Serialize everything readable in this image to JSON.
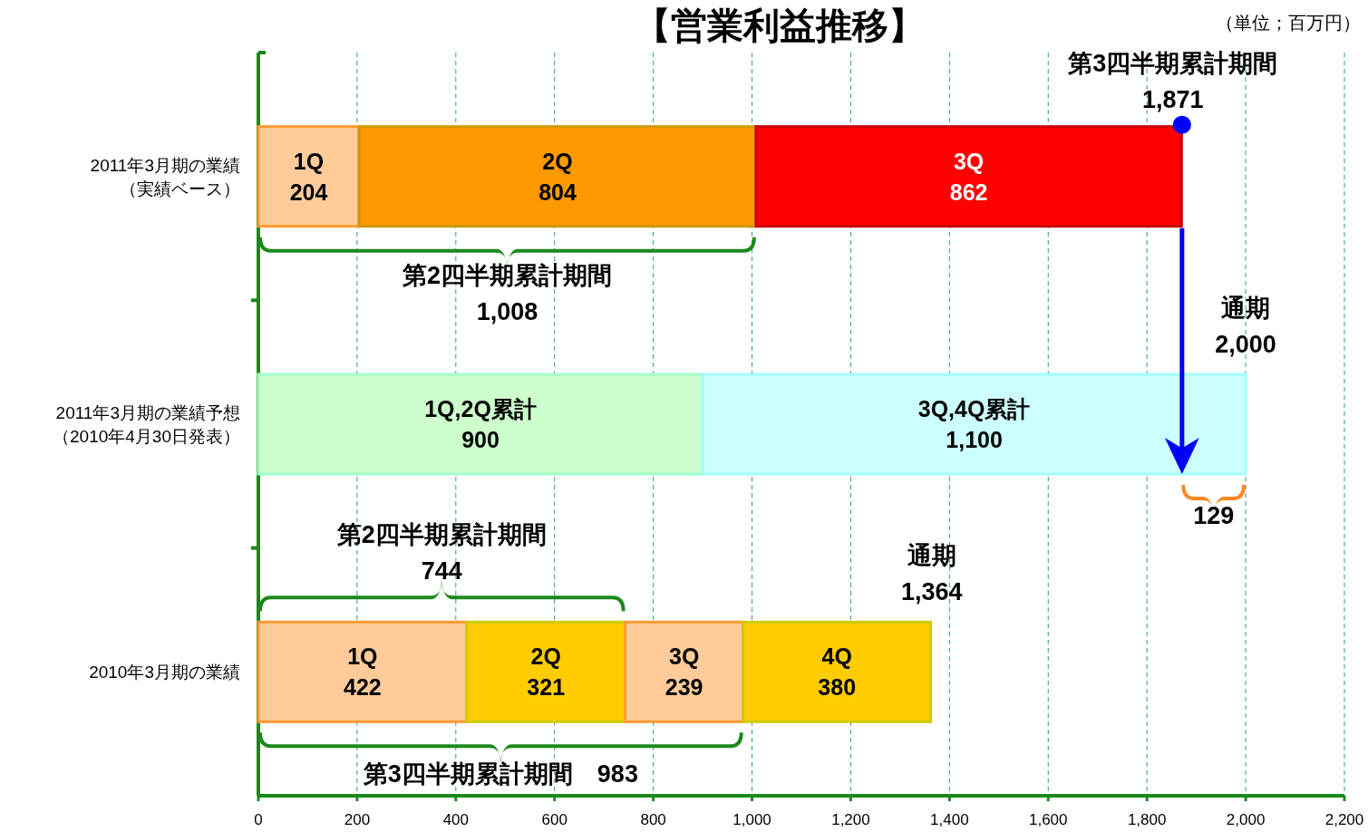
{
  "chart_data": {
    "type": "bar",
    "orientation": "horizontal",
    "stacked": true,
    "title": "【営業利益推移】",
    "categories": [
      "2011年3月期の業績（実績ベース）",
      "2011年3月期の業績予想（2010年4月30日発表）",
      "2010年3月期の業績"
    ],
    "series": [
      {
        "colors": [
          "#ffcc99",
          "#ccffcc",
          "#ffcc99"
        ],
        "values": [
          204,
          900,
          422
        ],
        "value_labels": [
          "1Q\n204",
          "1Q,2Q累計\n900",
          "1Q\n422"
        ]
      },
      {
        "colors": [
          "#ff9900",
          "#ccffff",
          "#ffcc00"
        ],
        "values": [
          804,
          1100,
          321
        ],
        "value_labels": [
          "2Q\n804",
          "3Q,4Q累計\n1,100",
          "2Q\n321"
        ]
      },
      {
        "colors": [
          "#ff0000",
          null,
          "#ffcc99"
        ],
        "values": [
          862,
          null,
          239
        ],
        "value_labels": [
          "3Q\n862",
          null,
          "3Q\n239"
        ]
      },
      {
        "colors": [
          null,
          null,
          "#ffcc00"
        ],
        "values": [
          null,
          null,
          380
        ],
        "value_labels": [
          null,
          null,
          "4Q\n380"
        ]
      }
    ],
    "xlim": [
      0,
      2200
    ],
    "xticks": [
      0,
      200,
      400,
      600,
      800,
      {
        "value": 1000,
        "label": "1,000"
      },
      {
        "value": 1200,
        "label": "1,200"
      },
      {
        "value": 1400,
        "label": "1,400"
      },
      {
        "value": 1600,
        "label": "1,600"
      },
      {
        "value": 1800,
        "label": "1,800"
      },
      {
        "value": 2000,
        "label": "2,000"
      },
      {
        "value": 2200,
        "label": "2,200"
      }
    ],
    "grid": "x",
    "annotations": [
      {
        "text": "第3四半期累計期間\n1,871",
        "x": 1871,
        "y": "2011年3月期の業績（実績ベース）"
      },
      "第2四半期累計期間\n1,008",
      {
        "text": "通期\n2,000",
        "x": 2000,
        "y": "2011年3月期の業績予想（2010年4月30日発表）"
      },
      "129",
      "第2四半期累計期間\n744",
      {
        "text": "通期\n1,364",
        "x": 1364,
        "y": "2010年3月期の業績"
      },
      "第3四半期累計期間　983",
      "（単位；百万円）"
    ]
  }
}
